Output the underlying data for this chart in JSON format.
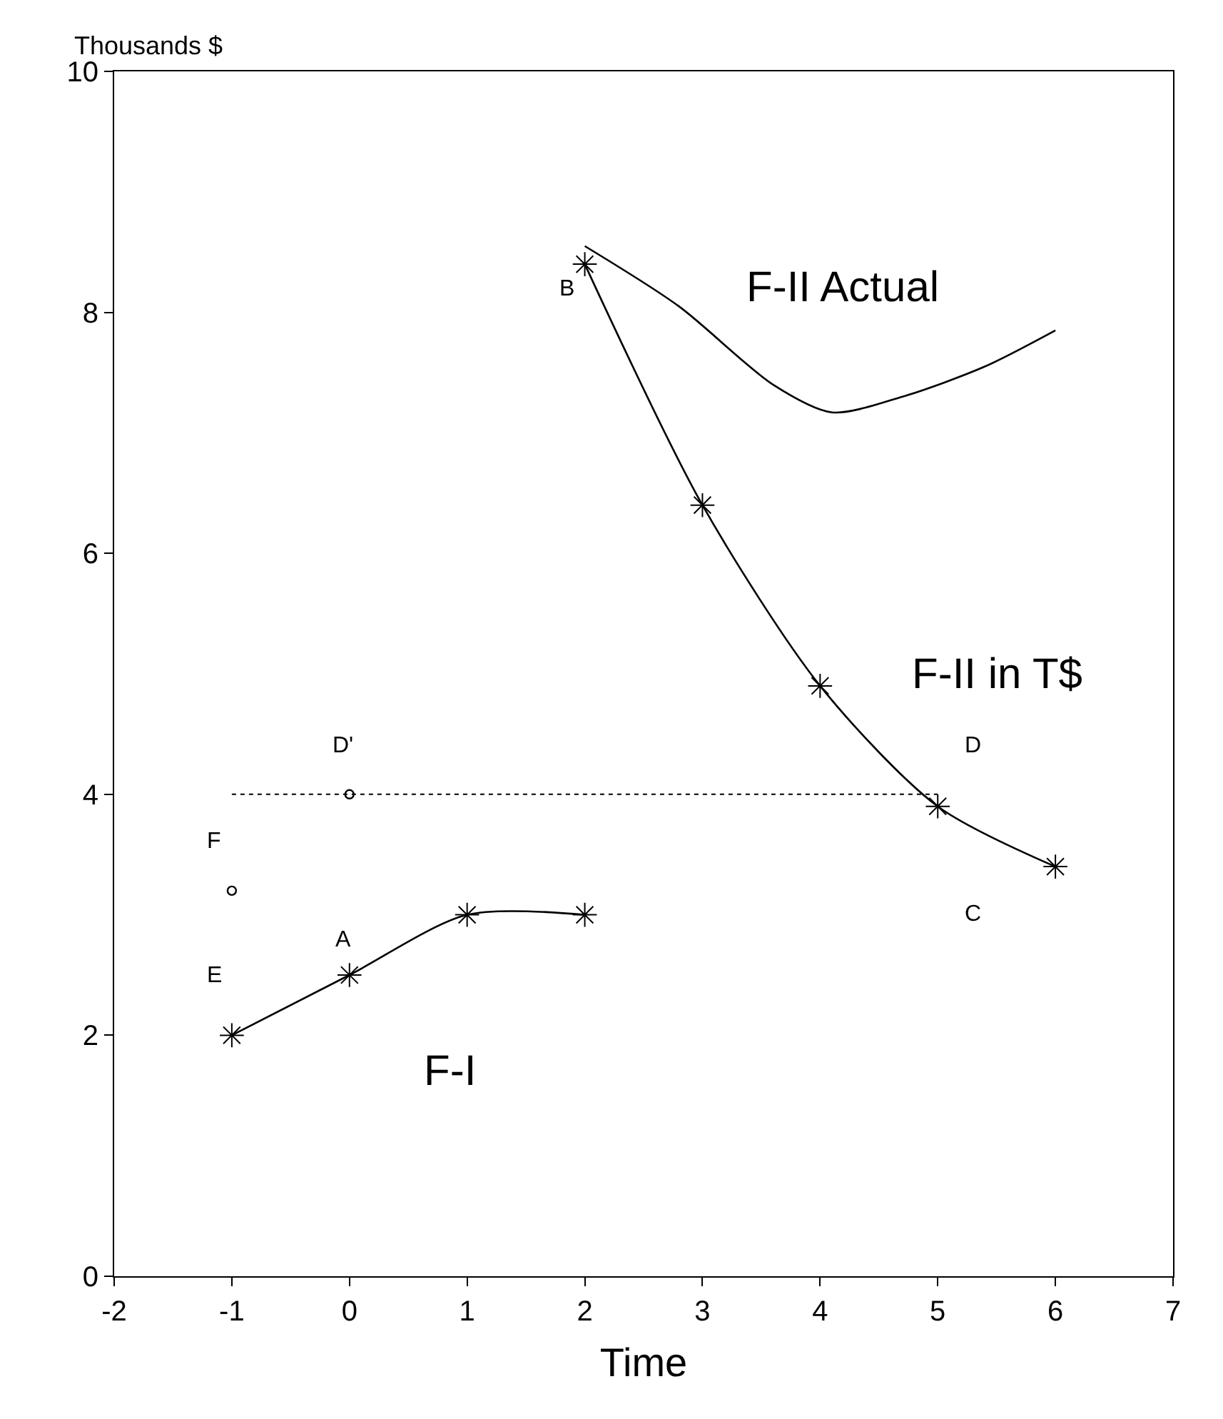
{
  "chart_data": {
    "type": "line",
    "ylabel": "Thousands $",
    "xlabel": "Time",
    "xlim": [
      -2,
      7
    ],
    "ylim": [
      0,
      10
    ],
    "xticks": [
      -2,
      -1,
      0,
      1,
      2,
      3,
      4,
      5,
      6,
      7
    ],
    "yticks": [
      0,
      2,
      4,
      6,
      8,
      10
    ],
    "legend": false,
    "series": [
      {
        "name": "F-I",
        "color": "#000000",
        "x": [
          -1,
          0,
          1,
          2
        ],
        "values": [
          2,
          2.5,
          3,
          3
        ],
        "marker": "cross",
        "line_style": "solid"
      },
      {
        "name": "F-II in T$",
        "color": "#000000",
        "x": [
          2,
          3,
          4,
          5,
          6
        ],
        "values": [
          8.4,
          6.4,
          4.9,
          3.9,
          3.4
        ],
        "marker": "cross",
        "line_style": "solid"
      },
      {
        "name": "F-II Actual",
        "color": "#000000",
        "x": [
          2,
          2.8,
          3.6,
          4.1,
          4.7,
          5.4,
          6
        ],
        "values": [
          8.55,
          8.05,
          7.4,
          7.17,
          7.3,
          7.55,
          7.85
        ],
        "marker": "none",
        "line_style": "solid"
      },
      {
        "color": "#000000",
        "x": [
          -1,
          5
        ],
        "values": [
          4,
          4
        ],
        "marker": "none",
        "line_style": "dotted"
      },
      {
        "type": "scatter",
        "color": "#000000",
        "x": [
          -1,
          0
        ],
        "values": [
          3.2,
          4
        ],
        "marker": "circle"
      }
    ],
    "annotations": [
      {
        "text": "E",
        "x": -1,
        "y": 2
      },
      {
        "text": "A",
        "x": 0,
        "y": 2.5
      },
      {
        "text": "F",
        "x": -1,
        "y": 3.2
      },
      {
        "text": "D'",
        "x": 0,
        "y": 4
      },
      {
        "text": "B",
        "x": 2,
        "y": 8.4
      },
      {
        "text": "D",
        "x": 5,
        "y": 3.9
      },
      "C"
    ]
  }
}
